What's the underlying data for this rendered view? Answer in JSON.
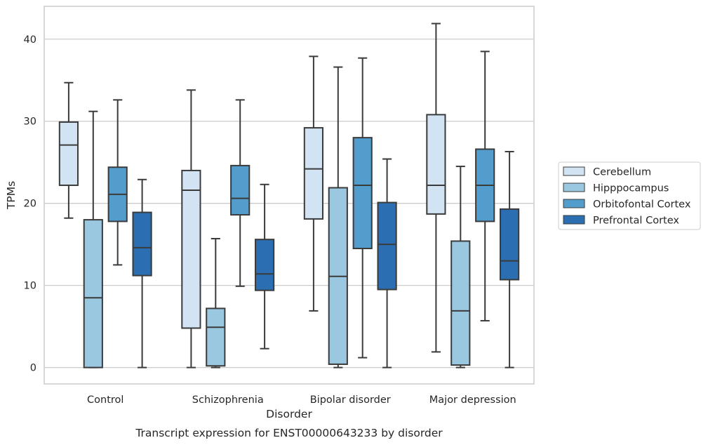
{
  "chart_data": {
    "type": "box",
    "title": "Transcript expression for ENST00000643233 by disorder",
    "xlabel": "Disorder",
    "ylabel": "TPMs",
    "ylim": [
      -2,
      44
    ],
    "yticks": [
      0,
      10,
      20,
      30,
      40
    ],
    "grid": "horizontal",
    "legend_position": "right",
    "categories": [
      "Control",
      "Schizophrenia",
      "Bipolar disorder",
      "Major depression"
    ],
    "series": [
      {
        "name": "Cerebellum",
        "color": "#d2e3f3",
        "boxes": [
          {
            "whislo": 18.2,
            "q1": 22.2,
            "med": 27.1,
            "q3": 29.9,
            "whishi": 34.7
          },
          {
            "whislo": 0.0,
            "q1": 4.8,
            "med": 21.6,
            "q3": 24.0,
            "whishi": 33.8
          },
          {
            "whislo": 6.9,
            "q1": 18.1,
            "med": 24.2,
            "q3": 29.2,
            "whishi": 37.9
          },
          {
            "whislo": 1.9,
            "q1": 18.7,
            "med": 22.2,
            "q3": 30.8,
            "whishi": 41.9
          }
        ]
      },
      {
        "name": "Hipppocampus",
        "color": "#9ac8e0",
        "boxes": [
          {
            "whislo": 0.0,
            "q1": 0.0,
            "med": 8.5,
            "q3": 18.0,
            "whishi": 31.2
          },
          {
            "whislo": 0.0,
            "q1": 0.2,
            "med": 4.9,
            "q3": 7.2,
            "whishi": 15.7
          },
          {
            "whislo": 0.0,
            "q1": 0.4,
            "med": 11.1,
            "q3": 21.9,
            "whishi": 36.6
          },
          {
            "whislo": 0.0,
            "q1": 0.3,
            "med": 6.9,
            "q3": 15.4,
            "whishi": 24.5
          }
        ]
      },
      {
        "name": "Orbitofontal Cortex",
        "color": "#529dcc",
        "boxes": [
          {
            "whislo": 12.5,
            "q1": 17.8,
            "med": 21.1,
            "q3": 24.4,
            "whishi": 32.6
          },
          {
            "whislo": 9.9,
            "q1": 18.6,
            "med": 20.6,
            "q3": 24.6,
            "whishi": 32.6
          },
          {
            "whislo": 1.2,
            "q1": 14.5,
            "med": 22.2,
            "q3": 28.0,
            "whishi": 37.7
          },
          {
            "whislo": 5.7,
            "q1": 17.8,
            "med": 22.2,
            "q3": 26.6,
            "whishi": 38.5
          }
        ]
      },
      {
        "name": "Prefrontal Cortex",
        "color": "#2b6fb2",
        "boxes": [
          {
            "whislo": 0.0,
            "q1": 11.2,
            "med": 14.6,
            "q3": 18.9,
            "whishi": 22.9
          },
          {
            "whislo": 2.3,
            "q1": 9.4,
            "med": 11.4,
            "q3": 15.6,
            "whishi": 22.3
          },
          {
            "whislo": 0.0,
            "q1": 9.5,
            "med": 15.0,
            "q3": 20.1,
            "whishi": 25.4
          },
          {
            "whislo": 0.0,
            "q1": 10.7,
            "med": 13.0,
            "q3": 19.3,
            "whishi": 26.3
          }
        ]
      }
    ]
  }
}
